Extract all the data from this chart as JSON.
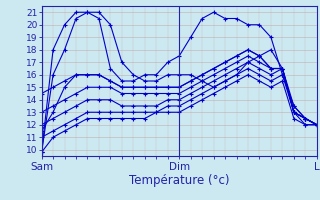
{
  "xlabel": "Température (°c)",
  "background_color": "#cce8f0",
  "line_color": "#0000cc",
  "ylim": [
    9.5,
    21.5
  ],
  "xlim": [
    0,
    96
  ],
  "xtick_positions": [
    0,
    48,
    96
  ],
  "xtick_labels": [
    "Sam",
    "Dim",
    "L"
  ],
  "ytick_positions": [
    10,
    11,
    12,
    13,
    14,
    15,
    16,
    17,
    18,
    19,
    20,
    21
  ],
  "lines": [
    {
      "x": [
        0,
        4,
        8,
        12,
        16,
        20,
        24,
        28,
        32,
        36,
        40,
        44,
        48,
        52,
        56,
        60,
        64,
        68,
        72,
        76,
        80,
        84,
        88,
        92,
        96
      ],
      "y": [
        9.8,
        16,
        18,
        20.5,
        21,
        21,
        20,
        17,
        16,
        15.5,
        15.5,
        16,
        16,
        16,
        15.5,
        15,
        15.5,
        16,
        17,
        17.5,
        18,
        16.5,
        13.5,
        12.5,
        12
      ]
    },
    {
      "x": [
        0,
        4,
        8,
        12,
        16,
        20,
        24,
        28,
        32,
        36,
        40,
        44,
        48,
        52,
        56,
        60,
        64,
        68,
        72,
        76,
        80,
        84,
        88,
        92,
        96
      ],
      "y": [
        9.8,
        18,
        20,
        21,
        21,
        20.5,
        16.5,
        15.5,
        15.5,
        16,
        16,
        17,
        17.5,
        19,
        20.5,
        21,
        20.5,
        20.5,
        20,
        20,
        19,
        16,
        13.5,
        12.5,
        12
      ]
    },
    {
      "x": [
        0,
        4,
        8,
        12,
        16,
        20,
        24,
        28,
        32,
        36,
        40,
        44,
        48,
        52,
        56,
        60,
        64,
        68,
        72,
        76,
        80,
        84,
        88,
        92,
        96
      ],
      "y": [
        11.5,
        13,
        15,
        16,
        16,
        16,
        15.5,
        15,
        15,
        15,
        15,
        15,
        15,
        15.5,
        16,
        16.5,
        17,
        17.5,
        18,
        17.5,
        16.5,
        16.5,
        13,
        12.5,
        12
      ]
    },
    {
      "x": [
        0,
        4,
        8,
        12,
        16,
        20,
        24,
        28,
        32,
        36,
        40,
        44,
        48,
        52,
        56,
        60,
        64,
        68,
        72,
        76,
        80,
        84,
        88,
        92,
        96
      ],
      "y": [
        14.5,
        15,
        15.5,
        16,
        16,
        16,
        15.5,
        15,
        15,
        15,
        15,
        15,
        15,
        15.5,
        16,
        16.5,
        17,
        17.5,
        18,
        17.5,
        16.5,
        16.5,
        13,
        12.5,
        12
      ]
    },
    {
      "x": [
        0,
        4,
        8,
        12,
        16,
        20,
        24,
        28,
        32,
        36,
        40,
        44,
        48,
        52,
        56,
        60,
        64,
        68,
        72,
        76,
        80,
        84,
        88,
        92,
        96
      ],
      "y": [
        13,
        13.5,
        14,
        14.5,
        15,
        15,
        15,
        14.5,
        14.5,
        14.5,
        14.5,
        14.5,
        14.5,
        15,
        15.5,
        16,
        16.5,
        17,
        17.5,
        17,
        16.5,
        16.5,
        13,
        12.5,
        12
      ]
    },
    {
      "x": [
        0,
        4,
        8,
        12,
        16,
        20,
        24,
        28,
        32,
        36,
        40,
        44,
        48,
        52,
        56,
        60,
        64,
        68,
        72,
        76,
        80,
        84,
        88,
        92,
        96
      ],
      "y": [
        12,
        12.5,
        13,
        13.5,
        14,
        14,
        14,
        13.5,
        13.5,
        13.5,
        13.5,
        14,
        14,
        14.5,
        15,
        15.5,
        16,
        16.5,
        17,
        16.5,
        16,
        16.5,
        13,
        12.5,
        12
      ]
    },
    {
      "x": [
        0,
        4,
        8,
        12,
        16,
        20,
        24,
        28,
        32,
        36,
        40,
        44,
        48,
        52,
        56,
        60,
        64,
        68,
        72,
        76,
        80,
        84,
        88,
        92,
        96
      ],
      "y": [
        11,
        11.5,
        12,
        12.5,
        13,
        13,
        13,
        13,
        13,
        13,
        13,
        13.5,
        13.5,
        14,
        14.5,
        15,
        15.5,
        16,
        16.5,
        16,
        15.5,
        16,
        13,
        12,
        12
      ]
    },
    {
      "x": [
        0,
        4,
        8,
        12,
        16,
        20,
        24,
        28,
        32,
        36,
        40,
        44,
        48,
        52,
        56,
        60,
        64,
        68,
        72,
        76,
        80,
        84,
        88,
        92,
        96
      ],
      "y": [
        9.8,
        11,
        11.5,
        12,
        12.5,
        12.5,
        12.5,
        12.5,
        12.5,
        12.5,
        13,
        13,
        13,
        13.5,
        14,
        14.5,
        15,
        15.5,
        16,
        15.5,
        15,
        15.5,
        12.5,
        12,
        12
      ]
    }
  ]
}
